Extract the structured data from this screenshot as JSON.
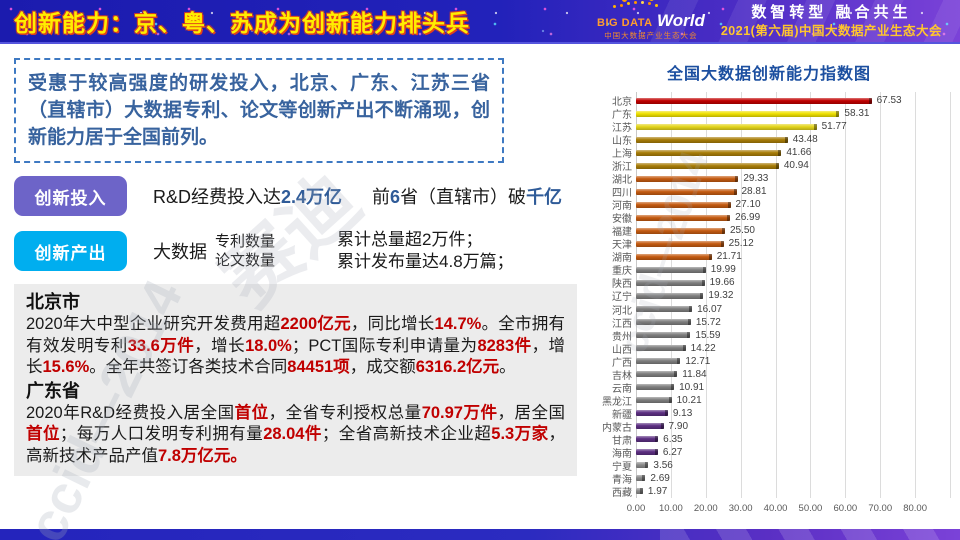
{
  "header": {
    "title": "创新能力：京、粤、苏成为创新能力排头兵",
    "logo": {
      "big": "BIG DATA",
      "world": "World",
      "sub": "中国大数据产业生态大会"
    },
    "slogan": "数智转型 融合共生",
    "event": "2021(第六届)中国大数据产业生态大会"
  },
  "intro": {
    "text": "受惠于较高强度的研发投入，北京、广东、江苏三省（直辖市）大数据专利、论文等创新产出不断涌现，创新能力居于全国前列。"
  },
  "rows": {
    "investment": {
      "badge": "创新投入",
      "part1": [
        {
          "t": "R&D经费投入达"
        },
        {
          "t": "2.4万亿",
          "c": "blue"
        }
      ],
      "part2": [
        {
          "t": "前"
        },
        {
          "t": "6",
          "c": "blue"
        },
        {
          "t": "省（直辖市）破"
        },
        {
          "t": "千亿",
          "c": "blue"
        }
      ]
    },
    "output": {
      "badge": "创新产出",
      "label": "大数据",
      "stack1": [
        "专利数量",
        "论文数量"
      ],
      "stack2": [
        "累计总量超2万件；",
        "累计发布量达4.8万篇；"
      ]
    }
  },
  "detail": {
    "beijing_title": "北京市",
    "beijing_segments": [
      {
        "t": "2020年大中型企业研究开发费用超"
      },
      {
        "t": "2200亿元",
        "c": "red"
      },
      {
        "t": "，同比增长"
      },
      {
        "t": "14.7%",
        "c": "red"
      },
      {
        "t": "。全市拥有有效发明专利"
      },
      {
        "t": "33.6万件",
        "c": "red"
      },
      {
        "t": "，增长"
      },
      {
        "t": "18.0%",
        "c": "red"
      },
      {
        "t": "；PCT国际专利申请量为"
      },
      {
        "t": "8283件",
        "c": "red"
      },
      {
        "t": "，增长"
      },
      {
        "t": "15.6%",
        "c": "red"
      },
      {
        "t": "。全年共签订各类技术合同"
      },
      {
        "t": "84451项",
        "c": "red"
      },
      {
        "t": "，成交额"
      },
      {
        "t": "6316.2亿元",
        "c": "red"
      },
      {
        "t": "。"
      }
    ],
    "guangdong_title": "广东省",
    "guangdong_segments": [
      {
        "t": "2020年R&D经费投入居全国"
      },
      {
        "t": "首位",
        "c": "red"
      },
      {
        "t": "，全省专利授权总量"
      },
      {
        "t": "70.97万件",
        "c": "red"
      },
      {
        "t": "，居全国"
      },
      {
        "t": "首位",
        "c": "red"
      },
      {
        "t": "；每万人口发明专利拥有量"
      },
      {
        "t": "28.04件",
        "c": "red"
      },
      {
        "t": "；全省高新技术企业超"
      },
      {
        "t": "5.3万家",
        "c": "red"
      },
      {
        "t": "，高新技术产品产值"
      },
      {
        "t": "7.8万亿元。",
        "c": "red"
      }
    ]
  },
  "watermarks": {
    "center": "赛迪",
    "left": "ccid—2014",
    "chart": "ccid—2014"
  },
  "colors": {
    "accent_blue": "#2f5b98",
    "accent_red": "#c00000",
    "badge_purple": "#6d64c8",
    "badge_cyan": "#00aeef",
    "chart_title_blue": "#1c4fa0"
  },
  "chart_data": {
    "type": "bar",
    "orientation": "horizontal",
    "title": "全国大数据创新能力指数图",
    "categories": [
      "北京",
      "广东",
      "江苏",
      "山东",
      "上海",
      "浙江",
      "湖北",
      "四川",
      "河南",
      "安徽",
      "福建",
      "天津",
      "湖南",
      "重庆",
      "陕西",
      "辽宁",
      "河北",
      "江西",
      "贵州",
      "山西",
      "广西",
      "吉林",
      "云南",
      "黑龙江",
      "新疆",
      "内蒙古",
      "甘肃",
      "海南",
      "宁夏",
      "青海",
      "西藏"
    ],
    "values": [
      67.53,
      58.31,
      51.77,
      43.48,
      41.66,
      40.94,
      29.33,
      28.81,
      27.1,
      26.99,
      25.5,
      25.12,
      21.71,
      19.99,
      19.66,
      19.32,
      16.07,
      15.72,
      15.59,
      14.22,
      12.71,
      11.84,
      10.91,
      10.21,
      9.13,
      7.9,
      6.35,
      6.27,
      3.56,
      2.69,
      1.97
    ],
    "colors": [
      "#c00000",
      "#efe100",
      "#e4d51c",
      "#a87d08",
      "#a87d08",
      "#a87d08",
      "#c45b11",
      "#c45b11",
      "#c45b11",
      "#c45b11",
      "#c45b11",
      "#c45b11",
      "#c45b11",
      "#7f7f7f",
      "#7f7f7f",
      "#7f7f7f",
      "#7f7f7f",
      "#7f7f7f",
      "#7f7f7f",
      "#7f7f7f",
      "#7f7f7f",
      "#7f7f7f",
      "#7f7f7f",
      "#7f7f7f",
      "#5c2e82",
      "#5c2e82",
      "#5c2e82",
      "#5c2e82",
      "#8c8c8c",
      "#8c8c8c",
      "#8c8c8c"
    ],
    "xlim": [
      0,
      90
    ],
    "x_ticks": [
      "0.00",
      "10.00",
      "20.00",
      "30.00",
      "40.00",
      "50.00",
      "60.00",
      "70.00",
      "80.00"
    ],
    "grid": true,
    "legend": false
  }
}
